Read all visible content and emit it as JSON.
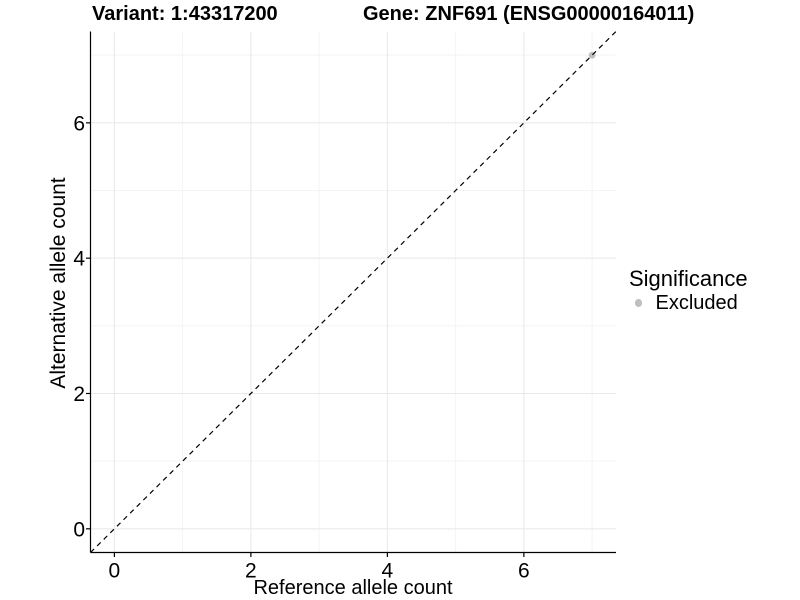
{
  "chart_data": {
    "type": "scatter",
    "titles": {
      "left": "Variant: 1:43317200",
      "right": "Gene: ZNF691 (ENSG00000164011)"
    },
    "xlabel": "Reference allele count",
    "ylabel": "Alternative allele count",
    "xlim": [
      -0.35,
      7.35
    ],
    "ylim": [
      -0.35,
      7.35
    ],
    "x_major_ticks": [
      0,
      2,
      4,
      6
    ],
    "y_major_ticks": [
      0,
      2,
      4,
      6
    ],
    "x_minor_ticks": [
      1,
      3,
      5,
      7
    ],
    "y_minor_ticks": [
      1,
      3,
      5,
      7
    ],
    "grid": "major and minor gridlines, white panel background",
    "reference_line": {
      "slope": 1,
      "intercept": 0,
      "linetype": "dashed",
      "color": "#000000"
    },
    "points": [
      {
        "x": 7,
        "y": 7,
        "group": "Excluded",
        "color": "#bfbfbf"
      }
    ],
    "legend": {
      "title": "Significance",
      "position": "right",
      "entries": [
        {
          "label": "Excluded",
          "color": "#bfbfbf"
        }
      ]
    },
    "colors": {
      "grid_major": "#e8e8e8",
      "grid_minor": "#f4f4f4",
      "axis": "#000000",
      "text": "#000000"
    }
  }
}
